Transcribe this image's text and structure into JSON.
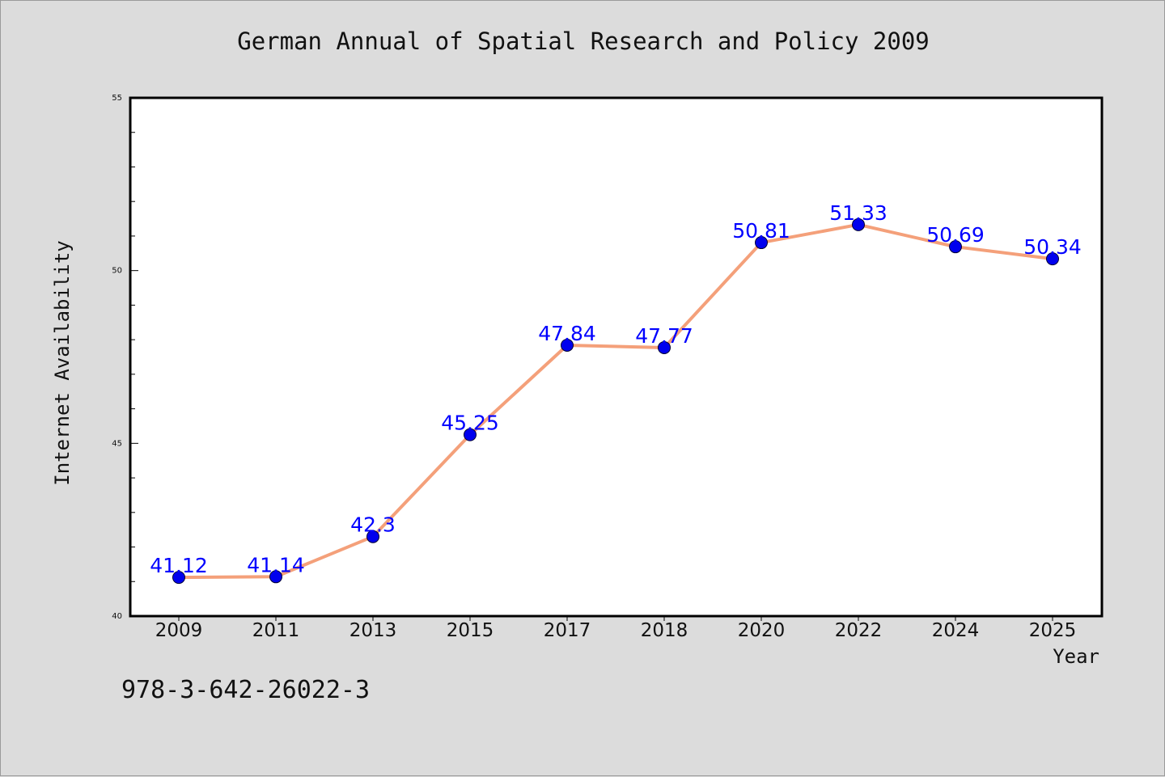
{
  "title": "German Annual of Spatial Research and Policy 2009",
  "footnote": "978-3-642-26022-3",
  "colors": {
    "line": "#f4a07a",
    "marker": "#0000ee",
    "label": "#0000ff",
    "plot_bg": "#ffffff",
    "page_bg": "#dcdcdc"
  },
  "chart_data": {
    "type": "line",
    "title": "German Annual of Spatial Research and Policy 2009",
    "xlabel": "Year",
    "ylabel": "Internet Availability",
    "categories": [
      "2009",
      "2011",
      "2013",
      "2015",
      "2017",
      "2018",
      "2020",
      "2022",
      "2024",
      "2025"
    ],
    "values": [
      41.12,
      41.14,
      42.3,
      45.25,
      47.84,
      47.77,
      50.81,
      51.33,
      50.69,
      50.34
    ],
    "data_labels": [
      "41.12",
      "41.14",
      "42.3",
      "45.25",
      "47.84",
      "47.77",
      "50.81",
      "51.33",
      "50.69",
      "50.34"
    ],
    "ylim": [
      40,
      55
    ],
    "yticks": [
      "40",
      "45",
      "50",
      "55"
    ],
    "grid": false,
    "legend": "none"
  }
}
